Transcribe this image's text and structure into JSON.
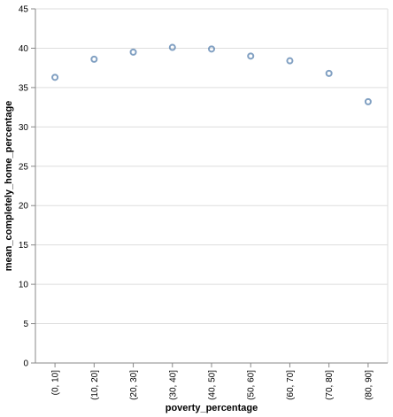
{
  "chart_data": {
    "type": "scatter",
    "title": "",
    "xlabel": "poverty_percentage",
    "ylabel": "mean_completely_home_percentage",
    "categories": [
      "(0, 10]",
      "(10, 20]",
      "(20, 30]",
      "(30, 40]",
      "(40, 50]",
      "(50, 60]",
      "(60, 70]",
      "(70, 80]",
      "(80, 90]"
    ],
    "values": [
      36.3,
      38.6,
      39.5,
      40.1,
      39.9,
      39.0,
      38.4,
      36.8,
      33.2
    ],
    "ylim": [
      0,
      45
    ],
    "yticks": [
      0,
      5,
      10,
      15,
      20,
      25,
      30,
      35,
      40,
      45
    ],
    "grid": true,
    "marker": "open-circle",
    "colors": {
      "point": "#4c78a8",
      "grid": "#dddddd",
      "axis": "#888888",
      "text": "#000000"
    }
  }
}
